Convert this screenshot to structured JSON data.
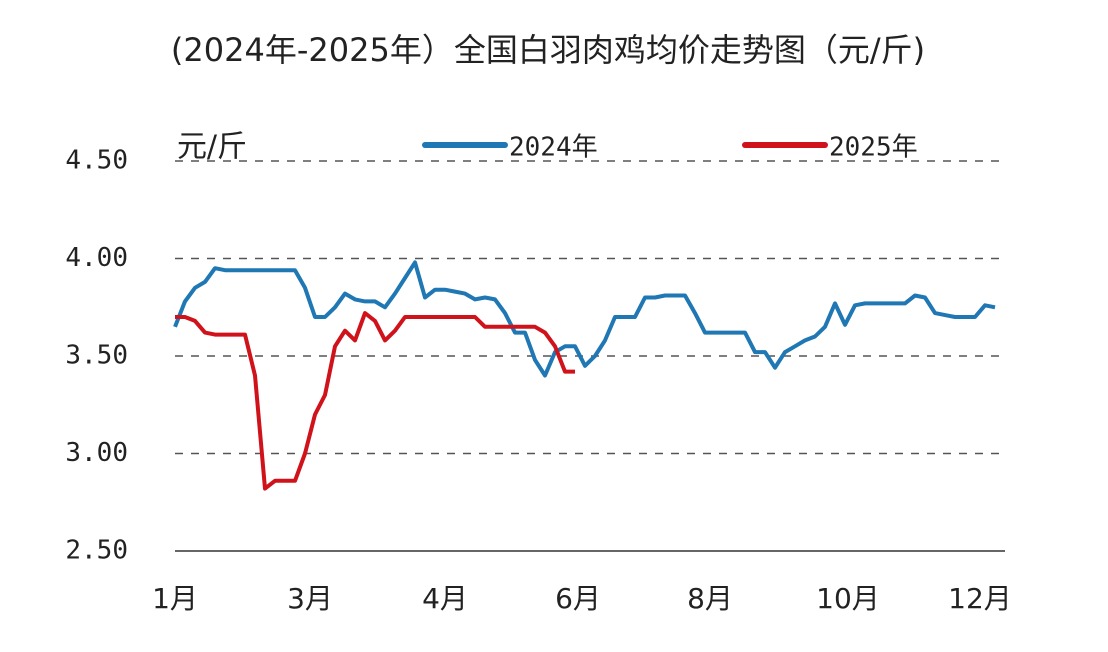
{
  "chart_data": {
    "type": "line",
    "title": "(2024年-2025年）全国白羽肉鸡均价走势图（元/斤)",
    "y_label": "元/斤",
    "x": [
      0,
      1,
      2,
      3,
      4,
      5,
      6,
      7,
      8,
      9,
      10,
      11,
      12,
      13,
      14,
      15,
      16,
      17,
      18,
      19,
      20,
      21,
      22,
      23,
      24,
      25,
      26,
      27,
      28,
      29,
      30,
      31,
      32,
      33,
      34,
      35,
      36,
      37,
      38,
      39,
      40,
      41,
      42,
      43,
      44,
      45,
      46,
      47,
      48,
      49,
      50,
      51,
      52,
      53,
      54,
      55,
      56,
      57,
      58,
      59,
      60,
      61,
      62,
      63,
      64,
      65,
      66,
      67,
      68,
      69,
      70,
      71,
      72,
      73,
      74,
      75,
      76,
      77,
      78,
      79,
      80,
      81,
      82
    ],
    "xlim": [
      0,
      83
    ],
    "xticks": [
      {
        "value": 0,
        "label": "1月"
      },
      {
        "value": 13.5,
        "label": "3月"
      },
      {
        "value": 27,
        "label": "4月"
      },
      {
        "value": 40.3,
        "label": "6月"
      },
      {
        "value": 53.5,
        "label": "8月"
      },
      {
        "value": 67.3,
        "label": "10月"
      },
      {
        "value": 80.5,
        "label": "12月"
      }
    ],
    "ylim": [
      2.5,
      4.5
    ],
    "yticks": [
      {
        "value": 2.5,
        "label": "2.50"
      },
      {
        "value": 3,
        "label": "3.00"
      },
      {
        "value": 3.5,
        "label": "3.50"
      },
      {
        "value": 4,
        "label": "4.00"
      },
      {
        "value": 4.5,
        "label": "4.50"
      }
    ],
    "grid": true,
    "series": [
      {
        "name": "2024年",
        "color": "#1f77b4",
        "values": [
          3.65,
          3.78,
          3.85,
          3.88,
          3.95,
          3.94,
          3.94,
          3.94,
          3.94,
          3.94,
          3.94,
          3.94,
          3.94,
          3.85,
          3.7,
          3.7,
          3.75,
          3.82,
          3.79,
          3.78,
          3.78,
          3.75,
          3.82,
          3.9,
          3.98,
          3.8,
          3.84,
          3.84,
          3.83,
          3.82,
          3.79,
          3.8,
          3.79,
          3.72,
          3.62,
          3.62,
          3.48,
          3.4,
          3.52,
          3.55,
          3.55,
          3.45,
          3.5,
          3.58,
          3.7,
          3.7,
          3.7,
          3.8,
          3.8,
          3.81,
          3.81,
          3.81,
          3.72,
          3.62,
          3.62,
          3.62,
          3.62,
          3.62,
          3.52,
          3.52,
          3.44,
          3.52,
          3.55,
          3.58,
          3.6,
          3.65,
          3.77,
          3.66,
          3.76,
          3.77,
          3.77,
          3.77,
          3.77,
          3.77,
          3.81,
          3.8,
          3.72,
          3.71,
          3.7,
          3.7,
          3.7,
          3.76,
          3.75
        ]
      },
      {
        "name": "2025年",
        "color": "#d0121b",
        "values": [
          3.7,
          3.7,
          3.68,
          3.62,
          3.61,
          3.61,
          3.61,
          3.61,
          3.4,
          2.82,
          2.86,
          2.86,
          2.86,
          3.0,
          3.2,
          3.3,
          3.55,
          3.63,
          3.58,
          3.72,
          3.68,
          3.58,
          3.63,
          3.7,
          3.7,
          3.7,
          3.7,
          3.7,
          3.7,
          3.7,
          3.7,
          3.65,
          3.65,
          3.65,
          3.65,
          3.65,
          3.65,
          3.62,
          3.55,
          3.42,
          3.42,
          null,
          null,
          null,
          null,
          null,
          null,
          null,
          null,
          null,
          null,
          null,
          null,
          null,
          null,
          null,
          null,
          null,
          null,
          null,
          null,
          null,
          null,
          null,
          null,
          null,
          null,
          null,
          null,
          null,
          null,
          null,
          null,
          null,
          null,
          null,
          null,
          null,
          null,
          null,
          null,
          null,
          null
        ]
      }
    ]
  }
}
